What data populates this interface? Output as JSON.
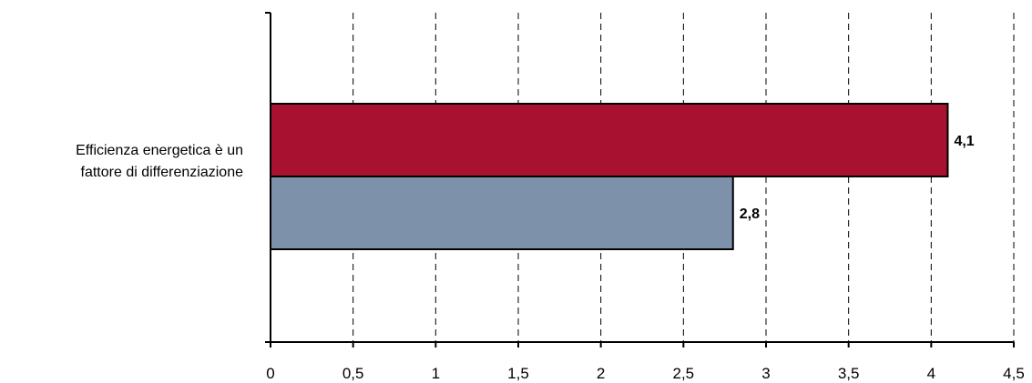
{
  "chart_data": {
    "type": "bar",
    "orientation": "horizontal",
    "categories": [
      "Efficienza energetica è un fattore di differenziazione"
    ],
    "category_label_lines": [
      "Efficienza energetica è un",
      "fattore di differenziazione"
    ],
    "series": [
      {
        "values": [
          4.1
        ],
        "color": "#A81230",
        "data_labels": [
          "4,1"
        ]
      },
      {
        "values": [
          2.8
        ],
        "color": "#7D91AA",
        "data_labels": [
          "2,8"
        ]
      }
    ],
    "xlim": [
      0,
      4.5
    ],
    "xticks": [
      0,
      0.5,
      1,
      1.5,
      2,
      2.5,
      3,
      3.5,
      4,
      4.5
    ],
    "xtick_labels": [
      "0",
      "0,5",
      "1",
      "1,5",
      "2",
      "2,5",
      "3",
      "3,5",
      "4",
      "4,5"
    ],
    "grid": "vertical-dashed",
    "legend": "none",
    "title": "",
    "xlabel": "",
    "ylabel": ""
  }
}
